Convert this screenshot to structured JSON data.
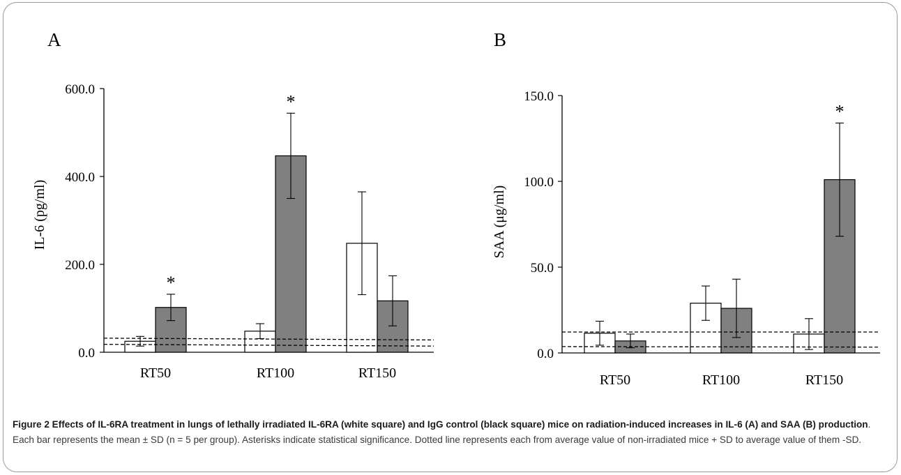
{
  "panels": [
    {
      "letter": "A",
      "ylabel": "IL-6 (pg/ml)",
      "ytick_labels": [
        "0.0",
        "200.0",
        "400.0",
        "600.0"
      ]
    },
    {
      "letter": "B",
      "ylabel": "SAA (μg/ml)",
      "ytick_labels": [
        "0.0",
        "50.0",
        "100.0",
        "150.0"
      ]
    }
  ],
  "caption": {
    "bold": "Figure 2 Effects of IL-6RA treatment in lungs of lethally irradiated IL-6RA (white square) and IgG control (black square) mice on radiation-induced increases in IL-6 (A) and SAA (B) production",
    "rest": ". Each bar represents the mean ± SD (n = 5 per group). Asterisks indicate statistical significance. Dotted line represents each from average value of non-irradiated mice + SD to average value of them -SD."
  },
  "colors": {
    "treated_bar": "#ffffff",
    "control_bar": "#808080",
    "outline": "#000000"
  },
  "chart_data": [
    {
      "type": "bar",
      "panel": "A",
      "title": "",
      "xlabel": "",
      "ylabel": "IL-6 (pg/ml)",
      "ylim": [
        0,
        600
      ],
      "yticks": [
        0,
        200,
        400,
        600
      ],
      "categories": [
        "RT50",
        "RT100",
        "RT150"
      ],
      "series": [
        {
          "fill": "#ffffff",
          "values": [
            25,
            48,
            248
          ],
          "sd": [
            11,
            17,
            117
          ]
        },
        {
          "fill": "#808080",
          "values": [
            102,
            447,
            117
          ],
          "sd": [
            30,
            97,
            57
          ]
        }
      ],
      "significance": [
        {
          "category": "RT50",
          "series": 1,
          "label": "*"
        },
        {
          "category": "RT100",
          "series": 1,
          "label": "*"
        }
      ],
      "reference_lines": [
        {
          "style": "dashed",
          "from": 32,
          "to": 28
        },
        {
          "style": "dashed",
          "from": 18,
          "to": 14
        }
      ],
      "grid": false,
      "legend": "none"
    },
    {
      "type": "bar",
      "panel": "B",
      "title": "",
      "xlabel": "",
      "ylabel": "SAA (μg/ml)",
      "ylim": [
        0,
        150
      ],
      "yticks": [
        0,
        50,
        100,
        150
      ],
      "categories": [
        "RT50",
        "RT100",
        "RT150"
      ],
      "series": [
        {
          "fill": "#ffffff",
          "values": [
            11.5,
            29,
            11
          ],
          "sd": [
            7,
            10,
            9
          ]
        },
        {
          "fill": "#808080",
          "values": [
            7,
            26,
            101
          ],
          "sd": [
            4,
            17,
            33
          ]
        }
      ],
      "significance": [
        {
          "category": "RT150",
          "series": 1,
          "label": "*"
        }
      ],
      "reference_lines": [
        {
          "style": "dashed",
          "from": 12.2,
          "to": 12.2
        },
        {
          "style": "dashed",
          "from": 3.7,
          "to": 3.4
        }
      ],
      "grid": false,
      "legend": "none"
    }
  ]
}
